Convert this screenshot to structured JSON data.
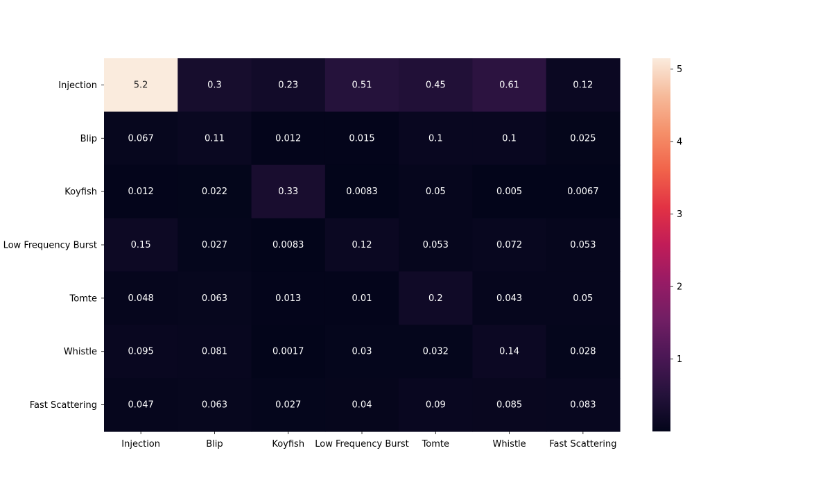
{
  "chart_data": {
    "type": "heatmap",
    "title": "",
    "xlabel": "",
    "ylabel": "",
    "x_categories": [
      "Injection",
      "Blip",
      "Koyfish",
      "Low Frequency Burst",
      "Tomte",
      "Whistle",
      "Fast Scattering"
    ],
    "y_categories": [
      "Injection",
      "Blip",
      "Koyfish",
      "Low Frequency Burst",
      "Tomte",
      "Whistle",
      "Fast Scattering"
    ],
    "values": [
      [
        5.2,
        0.3,
        0.23,
        0.51,
        0.45,
        0.61,
        0.12
      ],
      [
        0.067,
        0.11,
        0.012,
        0.015,
        0.1,
        0.1,
        0.025
      ],
      [
        0.012,
        0.022,
        0.33,
        0.0083,
        0.05,
        0.005,
        0.0067
      ],
      [
        0.15,
        0.027,
        0.0083,
        0.12,
        0.053,
        0.072,
        0.053
      ],
      [
        0.048,
        0.063,
        0.013,
        0.01,
        0.2,
        0.043,
        0.05
      ],
      [
        0.095,
        0.081,
        0.0017,
        0.03,
        0.032,
        0.14,
        0.028
      ],
      [
        0.047,
        0.063,
        0.027,
        0.04,
        0.09,
        0.085,
        0.083
      ]
    ],
    "cell_labels": [
      [
        "5.2",
        "0.3",
        "0.23",
        "0.51",
        "0.45",
        "0.61",
        "0.12"
      ],
      [
        "0.067",
        "0.11",
        "0.012",
        "0.015",
        "0.1",
        "0.1",
        "0.025"
      ],
      [
        "0.012",
        "0.022",
        "0.33",
        "0.0083",
        "0.05",
        "0.005",
        "0.0067"
      ],
      [
        "0.15",
        "0.027",
        "0.0083",
        "0.12",
        "0.053",
        "0.072",
        "0.053"
      ],
      [
        "0.048",
        "0.063",
        "0.013",
        "0.01",
        "0.2",
        "0.043",
        "0.05"
      ],
      [
        "0.095",
        "0.081",
        "0.0017",
        "0.03",
        "0.032",
        "0.14",
        "0.028"
      ],
      [
        "0.047",
        "0.063",
        "0.027",
        "0.04",
        "0.09",
        "0.085",
        "0.083"
      ]
    ],
    "colormap": "rocket",
    "colorbar": {
      "range": [
        0.0017,
        5.15
      ],
      "ticks": [
        1,
        2,
        3,
        4,
        5
      ],
      "tick_labels": [
        "1",
        "2",
        "3",
        "4",
        "5"
      ],
      "position": "right"
    },
    "grid": false,
    "legend": "none"
  }
}
